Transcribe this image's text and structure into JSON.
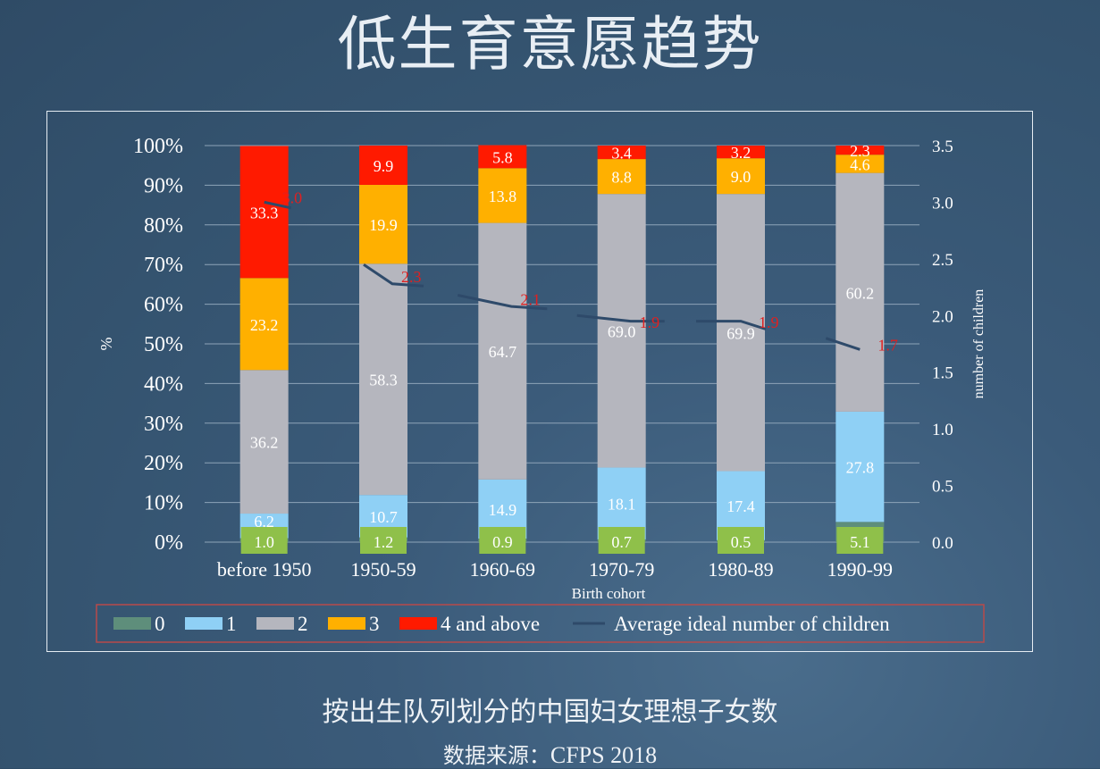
{
  "header": {
    "title": "低生育意愿趋势"
  },
  "footer": {
    "caption": "按出生队列划分的中国妇女理想子女数",
    "source_label": "数据来源：",
    "source_value": "CFPS 2018"
  },
  "chart_data": {
    "type": "bar",
    "stacked": true,
    "categories": [
      "before 1950",
      "1950-59",
      "1960-69",
      "1970-79",
      "1980-89",
      "1990-99"
    ],
    "series": [
      {
        "name": "0",
        "values": [
          1.0,
          1.2,
          0.9,
          0.7,
          0.5,
          5.1
        ],
        "color": "#5e8e7b"
      },
      {
        "name": "1",
        "values": [
          6.2,
          10.7,
          14.9,
          18.1,
          17.4,
          27.8
        ],
        "color": "#8fd0f5"
      },
      {
        "name": "2",
        "values": [
          36.2,
          58.3,
          64.7,
          69.0,
          69.9,
          60.2
        ],
        "color": "#b5b6be"
      },
      {
        "name": "3",
        "values": [
          23.2,
          19.9,
          13.8,
          8.8,
          9.0,
          4.6
        ],
        "color": "#ffb000"
      },
      {
        "name": "4 and above",
        "values": [
          33.3,
          9.9,
          5.8,
          3.4,
          3.2,
          2.3
        ],
        "color": "#ff1a00"
      }
    ],
    "line_series": {
      "name": "Average ideal number of children",
      "values": [
        3.0,
        2.3,
        2.1,
        1.9,
        1.9,
        1.7
      ],
      "labels": [
        "3.0",
        "2.3",
        "2.1",
        "1.9",
        "1.9",
        "1.7"
      ],
      "color": "#2e4a6a",
      "label_color": "#e02020"
    },
    "y_left": {
      "label": "%",
      "ticks": [
        "0%",
        "10%",
        "20%",
        "30%",
        "40%",
        "50%",
        "60%",
        "70%",
        "80%",
        "90%",
        "100%"
      ],
      "range": [
        0,
        100
      ]
    },
    "y_right": {
      "label": "number of children",
      "ticks": [
        "0.0",
        "0.5",
        "1.0",
        "1.5",
        "2.0",
        "2.5",
        "3.0",
        "3.5"
      ],
      "range": [
        0,
        3.5
      ]
    },
    "xlabel": "Birth cohort",
    "grid": true,
    "legend_position": "bottom"
  }
}
